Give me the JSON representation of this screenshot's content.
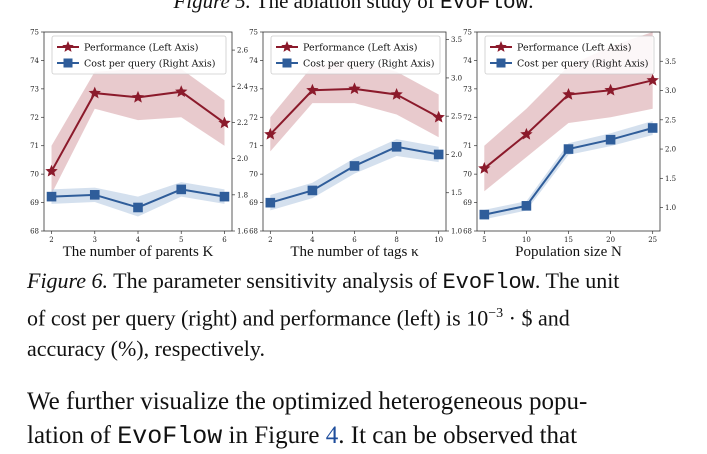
{
  "top_caption": {
    "prefix": "Figure 5.",
    "text": " The ablation study of ",
    "name": "EvoFlow",
    "suffix": "."
  },
  "colors": {
    "performance": "#8b1a2b",
    "cost": "#2f5d9a",
    "perf_band": "#d9a6ab",
    "cost_band": "#b7cbe3"
  },
  "chart_data": [
    {
      "type": "line",
      "xlabel": "The number of parents K",
      "x": [
        2,
        3,
        4,
        5,
        6
      ],
      "xticks": [
        "2",
        "3",
        "4",
        "5",
        "6"
      ],
      "left_axis": {
        "ylim": [
          68,
          75
        ],
        "ticks": [
          "68",
          "69",
          "70",
          "71",
          "72",
          "73",
          "74",
          "75"
        ]
      },
      "right_axis": {
        "ylim": [
          1.6,
          2.7
        ],
        "ticks": [
          "1.6",
          "1.8",
          "2.0",
          "2.2",
          "2.4",
          "2.6"
        ]
      },
      "series": [
        {
          "name": "Performance (Left Axis)",
          "axis": "left",
          "marker": "star",
          "values": [
            70.1,
            72.85,
            72.7,
            72.9,
            71.8
          ],
          "band_low": [
            69.3,
            72.3,
            71.9,
            72.0,
            71.0
          ],
          "band_high": [
            71.0,
            73.6,
            73.7,
            73.7,
            72.6
          ]
        },
        {
          "name": "Cost per query (Right Axis)",
          "axis": "right",
          "marker": "square",
          "values": [
            1.79,
            1.8,
            1.73,
            1.83,
            1.79
          ],
          "band_low": [
            1.75,
            1.76,
            1.68,
            1.79,
            1.75
          ],
          "band_high": [
            1.83,
            1.84,
            1.79,
            1.87,
            1.83
          ]
        }
      ],
      "legend": "top-left"
    },
    {
      "type": "line",
      "xlabel": "The number of tags κ",
      "x": [
        2,
        4,
        6,
        8,
        10
      ],
      "xticks": [
        "2",
        "4",
        "6",
        "8",
        "10"
      ],
      "left_axis": {
        "ylim": [
          68,
          75
        ],
        "ticks": [
          "68",
          "69",
          "70",
          "71",
          "72",
          "73",
          "74",
          "75"
        ]
      },
      "right_axis": {
        "ylim": [
          1.0,
          3.6
        ],
        "ticks": [
          "1.0",
          "1.5",
          "2.0",
          "2.5",
          "3.0",
          "3.5"
        ]
      },
      "series": [
        {
          "name": "Performance (Left Axis)",
          "axis": "left",
          "marker": "star",
          "values": [
            71.4,
            72.95,
            73.0,
            72.8,
            72.0
          ],
          "band_low": [
            70.8,
            72.5,
            72.5,
            72.1,
            71.3
          ],
          "band_high": [
            72.0,
            73.8,
            74.0,
            73.6,
            72.8
          ]
        },
        {
          "name": "Cost per query (Right Axis)",
          "axis": "right",
          "marker": "square",
          "values": [
            1.37,
            1.53,
            1.85,
            2.1,
            2.0
          ],
          "band_low": [
            1.27,
            1.43,
            1.75,
            1.98,
            1.9
          ],
          "band_high": [
            1.47,
            1.63,
            1.95,
            2.2,
            2.1
          ]
        }
      ],
      "legend": "top-left"
    },
    {
      "type": "line",
      "xlabel": "Population size N",
      "x": [
        5,
        10,
        15,
        20,
        25
      ],
      "xticks": [
        "5",
        "10",
        "15",
        "20",
        "25"
      ],
      "left_axis": {
        "ylim": [
          68,
          75
        ],
        "ticks": [
          "68",
          "69",
          "70",
          "71",
          "72",
          "73",
          "74",
          "75"
        ]
      },
      "right_axis": {
        "ylim": [
          0.6,
          4.0
        ],
        "ticks": [
          "1.0",
          "1.5",
          "2.0",
          "2.5",
          "3.0",
          "3.5"
        ]
      },
      "series": [
        {
          "name": "Performance (Left Axis)",
          "axis": "left",
          "marker": "star",
          "values": [
            70.2,
            71.4,
            72.8,
            72.95,
            73.3
          ],
          "band_low": [
            69.4,
            70.6,
            71.8,
            72.0,
            72.3
          ],
          "band_high": [
            71.0,
            72.3,
            73.8,
            74.5,
            75.0
          ]
        },
        {
          "name": "Cost per query (Right Axis)",
          "axis": "right",
          "marker": "square",
          "values": [
            0.88,
            1.03,
            2.0,
            2.16,
            2.36
          ],
          "band_low": [
            0.8,
            0.95,
            1.9,
            2.05,
            2.24
          ],
          "band_high": [
            0.96,
            1.11,
            2.1,
            2.27,
            2.48
          ]
        }
      ],
      "legend": "top-left"
    }
  ],
  "caption": {
    "label": "Figure 6.",
    "line1": " The parameter sensitivity analysis of ",
    "name": "EvoFlow",
    "line1_end": ". The unit",
    "line2": "of cost per query (right) and performance (left) is 10",
    "exponent": "−3",
    "line2_end": " · $ and",
    "line3": "accuracy (%), respectively."
  },
  "body": {
    "line1": "We further visualize the optimized heterogeneous popu-",
    "line2_a": "lation of ",
    "name": "EvoFlow",
    "line2_b": " in Figure ",
    "ref": "4",
    "line2_c": ". It can be observed that"
  }
}
